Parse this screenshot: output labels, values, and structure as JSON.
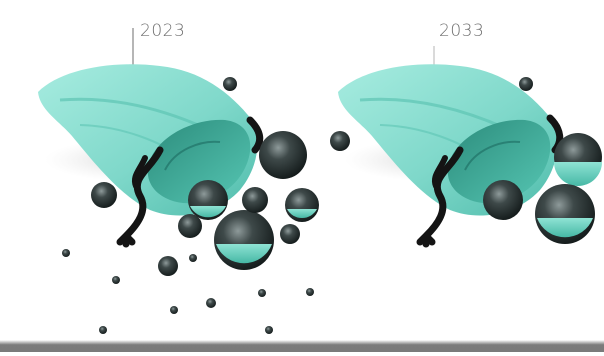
{
  "panels": [
    {
      "year": "2023"
    },
    {
      "year": "2033"
    }
  ],
  "colors": {
    "bag_teal": "#7fd6c8",
    "bag_shadow": "#4db3a3",
    "rope": "#141414",
    "marble_dark": "#1f2a2a",
    "marble_highlight": "#9aa8a8",
    "marble_teal": "#5ac6b4",
    "label_text": "#6e6e6e",
    "bottom_bar": "#7a7a7a"
  },
  "icons": {
    "bag": "drawstring-bag-icon",
    "marble": "marble-icon"
  }
}
